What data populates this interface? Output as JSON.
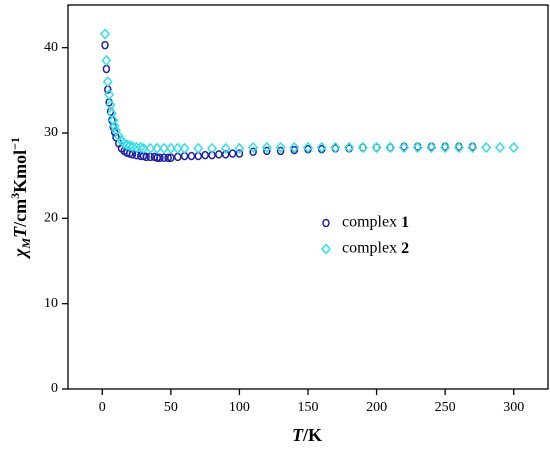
{
  "chart_data": {
    "type": "scatter",
    "xlabel": [
      "T",
      "/K"
    ],
    "ylabel": [
      "χ",
      "M",
      "T",
      "/cm",
      "3",
      "Kmol",
      "−1"
    ],
    "xlim": [
      -25,
      325
    ],
    "xticks": [
      0,
      50,
      100,
      150,
      200,
      250,
      300
    ],
    "ylim": [
      0,
      45
    ],
    "yticks": [
      0,
      10,
      20,
      30,
      40
    ],
    "legend": "right",
    "series": [
      {
        "name": "complex 1",
        "color": "#2020a8",
        "marker": "circle",
        "x": [
          2,
          3,
          4,
          5,
          6,
          7,
          8,
          9,
          10,
          12,
          14,
          16,
          18,
          20,
          22,
          25,
          28,
          30,
          32,
          35,
          38,
          40,
          42,
          45,
          48,
          50,
          55,
          60,
          65,
          70,
          75,
          80,
          85,
          90,
          95,
          100,
          110,
          120,
          130,
          140,
          150,
          160,
          170,
          180,
          190,
          200,
          210,
          220,
          230,
          240,
          250,
          260,
          270
        ],
        "values": [
          40.3,
          37.5,
          35.1,
          33.6,
          32.5,
          31.5,
          30.7,
          30.1,
          29.5,
          28.8,
          28.2,
          27.9,
          27.7,
          27.6,
          27.5,
          27.4,
          27.3,
          27.3,
          27.2,
          27.2,
          27.2,
          27.1,
          27.1,
          27.1,
          27.1,
          27.1,
          27.2,
          27.3,
          27.3,
          27.3,
          27.4,
          27.4,
          27.5,
          27.5,
          27.6,
          27.6,
          27.8,
          27.9,
          27.9,
          28.0,
          28.1,
          28.1,
          28.2,
          28.2,
          28.3,
          28.3,
          28.3,
          28.4,
          28.4,
          28.4,
          28.4,
          28.4,
          28.4
        ]
      },
      {
        "name": "complex 2",
        "color": "#30e0e8",
        "marker": "diamond",
        "x": [
          2,
          3,
          4,
          5,
          6,
          7,
          8,
          9,
          10,
          12,
          14,
          16,
          18,
          20,
          22,
          25,
          28,
          30,
          35,
          40,
          45,
          50,
          55,
          60,
          70,
          80,
          90,
          100,
          110,
          120,
          130,
          140,
          150,
          160,
          170,
          180,
          190,
          200,
          210,
          220,
          230,
          240,
          250,
          260,
          270,
          280,
          290,
          300
        ],
        "values": [
          41.6,
          38.5,
          36.0,
          34.5,
          33.3,
          32.3,
          31.5,
          30.8,
          30.3,
          29.6,
          29.1,
          28.8,
          28.6,
          28.5,
          28.4,
          28.3,
          28.3,
          28.2,
          28.2,
          28.2,
          28.2,
          28.2,
          28.2,
          28.2,
          28.2,
          28.2,
          28.2,
          28.2,
          28.3,
          28.3,
          28.3,
          28.3,
          28.3,
          28.3,
          28.3,
          28.3,
          28.3,
          28.3,
          28.3,
          28.3,
          28.3,
          28.3,
          28.3,
          28.3,
          28.3,
          28.3,
          28.3,
          28.3
        ]
      }
    ]
  }
}
